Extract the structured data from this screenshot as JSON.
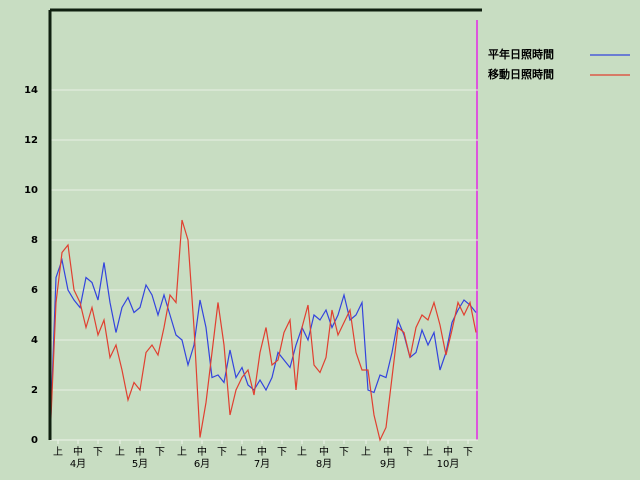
{
  "chart_data": {
    "type": "line",
    "x": [
      0,
      3,
      6,
      9,
      12,
      15,
      18,
      21,
      24,
      27,
      30,
      33,
      36,
      39,
      42,
      45,
      48,
      51,
      54,
      57,
      60,
      63,
      66,
      69,
      72,
      75,
      78,
      81,
      84,
      87,
      90,
      93,
      96,
      99,
      102,
      105,
      108,
      111,
      114,
      117,
      120,
      123,
      126,
      129,
      132,
      135,
      138,
      141,
      144,
      147,
      150,
      153,
      156,
      159,
      162,
      165,
      168,
      171,
      174,
      177,
      180,
      183,
      186,
      189,
      192,
      195,
      198,
      201,
      204,
      207,
      210,
      213
    ],
    "xlim": [
      0,
      214
    ],
    "xticks": [
      {
        "value": 4,
        "label": "上"
      },
      {
        "value": 14,
        "label": "中"
      },
      {
        "value": 24,
        "label": "下"
      },
      {
        "value": 35,
        "label": "上"
      },
      {
        "value": 45,
        "label": "中"
      },
      {
        "value": 55,
        "label": "下"
      },
      {
        "value": 66,
        "label": "上"
      },
      {
        "value": 76,
        "label": "中"
      },
      {
        "value": 86,
        "label": "下"
      },
      {
        "value": 96,
        "label": "上"
      },
      {
        "value": 106,
        "label": "中"
      },
      {
        "value": 116,
        "label": "下"
      },
      {
        "value": 126,
        "label": "上"
      },
      {
        "value": 137,
        "label": "中"
      },
      {
        "value": 147,
        "label": "下"
      },
      {
        "value": 158,
        "label": "上"
      },
      {
        "value": 169,
        "label": "中"
      },
      {
        "value": 179,
        "label": "下"
      },
      {
        "value": 189,
        "label": "上"
      },
      {
        "value": 199,
        "label": "中"
      },
      {
        "value": 209,
        "label": "下"
      }
    ],
    "month_labels": [
      {
        "value": 14,
        "label": "4月"
      },
      {
        "value": 45,
        "label": "5月"
      },
      {
        "value": 76,
        "label": "6月"
      },
      {
        "value": 106,
        "label": "7月"
      },
      {
        "value": 137,
        "label": "8月"
      },
      {
        "value": 169,
        "label": "9月"
      },
      {
        "value": 199,
        "label": "10月"
      }
    ],
    "ylim": [
      0,
      17.2
    ],
    "yticks": [
      0,
      2,
      4,
      6,
      8,
      10,
      12,
      14
    ],
    "grid": true,
    "series": [
      {
        "name": "平年日照時間",
        "color": "#3344dd",
        "values": [
          0,
          6.5,
          7.2,
          6.0,
          5.6,
          5.3,
          6.5,
          6.3,
          5.6,
          7.1,
          5.5,
          4.3,
          5.3,
          5.7,
          5.1,
          5.3,
          6.2,
          5.8,
          5.0,
          5.8,
          5.0,
          4.2,
          4.0,
          3.0,
          3.8,
          5.6,
          4.5,
          2.5,
          2.6,
          2.3,
          3.6,
          2.5,
          2.9,
          2.2,
          2.0,
          2.4,
          2.0,
          2.5,
          3.5,
          3.2,
          2.9,
          3.8,
          4.5,
          4.0,
          5.0,
          4.8,
          5.2,
          4.5,
          5.0,
          5.8,
          4.8,
          5.0,
          5.5,
          2.0,
          1.9,
          2.6,
          2.5,
          3.5,
          4.8,
          4.2,
          3.3,
          3.5,
          4.4,
          3.8,
          4.3,
          2.8,
          3.5,
          4.7,
          5.2,
          5.6,
          5.4,
          5.1
        ]
      },
      {
        "name": "移動日照時間",
        "color": "#e04030",
        "values": [
          0,
          5.5,
          7.5,
          7.8,
          6.0,
          5.5,
          4.5,
          5.3,
          4.2,
          4.8,
          3.3,
          3.8,
          2.8,
          1.6,
          2.3,
          2.0,
          3.5,
          3.8,
          3.4,
          4.5,
          5.8,
          5.5,
          8.8,
          8.0,
          4.5,
          0.1,
          1.5,
          3.5,
          5.5,
          3.8,
          1.0,
          2.0,
          2.5,
          2.8,
          1.8,
          3.5,
          4.5,
          3.0,
          3.2,
          4.3,
          4.8,
          2.0,
          4.5,
          5.4,
          3.0,
          2.7,
          3.3,
          5.2,
          4.2,
          4.7,
          5.2,
          3.5,
          2.8,
          2.8,
          1.0,
          0,
          0.5,
          2.5,
          4.5,
          4.3,
          3.3,
          4.5,
          5.0,
          4.8,
          5.5,
          4.6,
          3.4,
          4.4,
          5.5,
          5.0,
          5.5,
          4.3
        ]
      }
    ]
  }
}
